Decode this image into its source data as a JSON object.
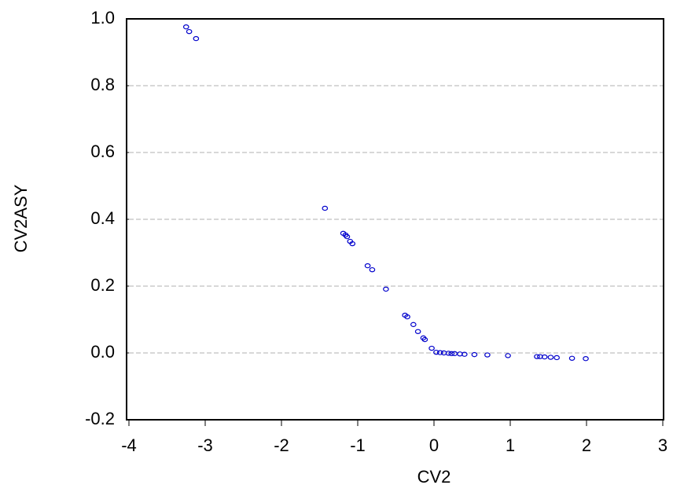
{
  "chart_data": {
    "type": "scatter",
    "xlabel": "CV2",
    "ylabel": "CV2ASY",
    "x": [
      -3.25,
      -3.21,
      -3.12,
      -1.43,
      -1.19,
      -1.16,
      -1.14,
      -1.1,
      -1.07,
      -0.87,
      -0.81,
      -0.63,
      -0.38,
      -0.35,
      -0.27,
      -0.21,
      -0.14,
      -0.12,
      -0.03,
      0.03,
      0.08,
      0.13,
      0.19,
      0.23,
      0.27,
      0.34,
      0.4,
      0.53,
      0.7,
      0.97,
      1.35,
      1.39,
      1.45,
      1.53,
      1.61,
      1.81,
      1.99
    ],
    "values": [
      0.976,
      0.962,
      0.941,
      0.433,
      0.358,
      0.353,
      0.348,
      0.334,
      0.327,
      0.261,
      0.249,
      0.191,
      0.113,
      0.108,
      0.085,
      0.064,
      0.045,
      0.04,
      0.014,
      0.002,
      0.001,
      0,
      -0.001,
      -0.002,
      -0.002,
      -0.003,
      -0.004,
      -0.005,
      -0.006,
      -0.008,
      -0.011,
      -0.011,
      -0.012,
      -0.013,
      -0.014,
      -0.016,
      -0.017
    ],
    "color": "#0000cc",
    "xlim": [
      -4,
      3
    ],
    "xticks": [
      -4,
      -3,
      -2,
      -1,
      0,
      1,
      2,
      3
    ],
    "ylim": [
      -0.2,
      1
    ],
    "yticks": [
      -0.2,
      {
        "value": 0,
        "label": "0.0"
      },
      0.2,
      0.4,
      0.6,
      0.8,
      {
        "value": 1,
        "label": "1.0"
      }
    ],
    "grid": true
  }
}
